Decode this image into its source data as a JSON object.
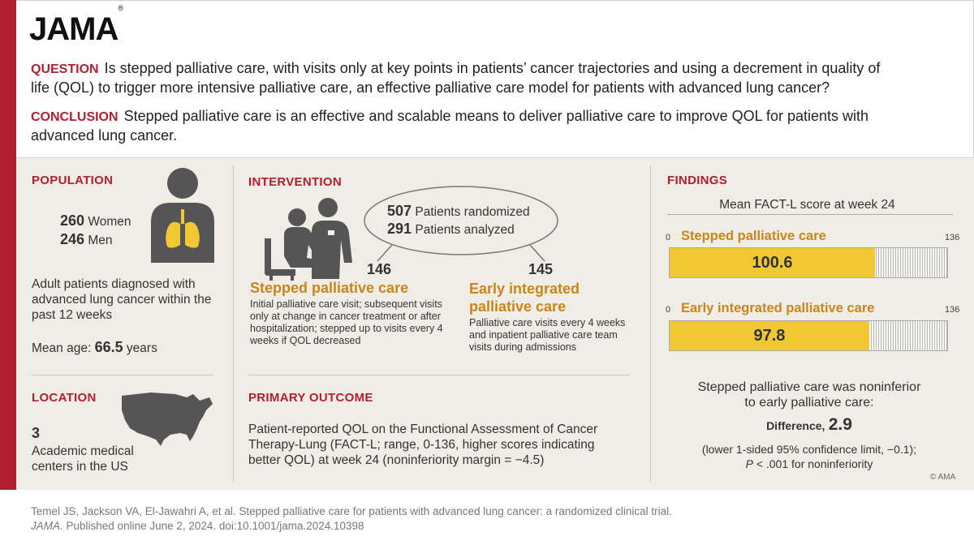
{
  "logo": {
    "text": "JAMA",
    "mark": "®"
  },
  "question": {
    "label": "QUESTION",
    "text": "Is stepped palliative care, with visits only at key points in patients’ cancer trajectories and using a decrement in quality of life (QOL) to trigger more intensive palliative care, an effective palliative care model for patients with advanced lung cancer?"
  },
  "conclusion": {
    "label": "CONCLUSION",
    "text": "Stepped palliative care is an effective and scalable means to deliver palliative care to improve QOL for patients with advanced lung cancer."
  },
  "population": {
    "title": "POPULATION",
    "women_n": "260",
    "women_label": "Women",
    "men_n": "246",
    "men_label": "Men",
    "description": "Adult patients diagnosed with advanced lung cancer within the past 12 weeks",
    "mean_age_label": "Mean age:",
    "mean_age_value": "66.5",
    "mean_age_unit": "years",
    "icon": "person-lungs-icon"
  },
  "location": {
    "title": "LOCATION",
    "count": "3",
    "description": "Academic medical centers in the US",
    "icon": "us-map-icon"
  },
  "intervention": {
    "title": "INTERVENTION",
    "randomized_n": "507",
    "randomized_label": "Patients randomized",
    "analyzed_n": "291",
    "analyzed_label": "Patients analyzed",
    "arm1": {
      "n": "146",
      "name": "Stepped palliative care",
      "description": "Initial palliative care visit; subsequent visits only at change in cancer treatment or after hospitalization; stepped up to visits every 4 weeks if QOL decreased"
    },
    "arm2": {
      "n": "145",
      "name": "Early integrated palliative care",
      "description": "Palliative care visits every 4 weeks and inpatient palliative care team visits during admissions"
    },
    "icon": "patient-clinician-icon"
  },
  "primary_outcome": {
    "title": "PRIMARY OUTCOME",
    "text": "Patient-reported QOL on the Functional Assessment of Cancer Therapy-Lung (FACT-L; range, 0-136, higher scores indicating better QOL) at week 24 (noninferiority margin = −4.5)"
  },
  "findings": {
    "title": "FINDINGS",
    "subtitle": "Mean FACT-L score at week 24",
    "summary_line1": "Stepped palliative care was noninferior",
    "summary_line2": "to early palliative care:",
    "difference_label": "Difference,",
    "difference_value": "2.9",
    "ci_text": "(lower 1-sided 95% confidence limit, −0.1);",
    "p_italic": "P",
    "p_text": "< .001 for noninferiority"
  },
  "chart_data": {
    "type": "bar",
    "title": "Mean FACT-L score at week 24",
    "orientation": "horizontal",
    "xlim": [
      0,
      136
    ],
    "tick_labels": [
      "0",
      "136"
    ],
    "series": [
      {
        "name": "Stepped palliative care",
        "value": 100.6,
        "label": "100.6"
      },
      {
        "name": "Early integrated palliative care",
        "value": 97.8,
        "label": "97.8"
      }
    ],
    "colors": {
      "fill": "#f2c734",
      "empty": "#d9d9d9",
      "label": "#c9861a"
    }
  },
  "copyright": "© AMA",
  "citation": {
    "line1": "Temel JS, Jackson VA, El-Jawahri A, et al. Stepped palliative care for patients with advanced lung cancer: a randomized clinical trial.",
    "journal": "JAMA",
    "line2": ". Published online June 2, 2024. doi:10.1001/jama.2024.10398"
  },
  "colors": {
    "brand_red": "#b21f2e",
    "accent_orange": "#c9861a",
    "panel_bg": "#efede5",
    "bar_yellow": "#f2c734"
  }
}
